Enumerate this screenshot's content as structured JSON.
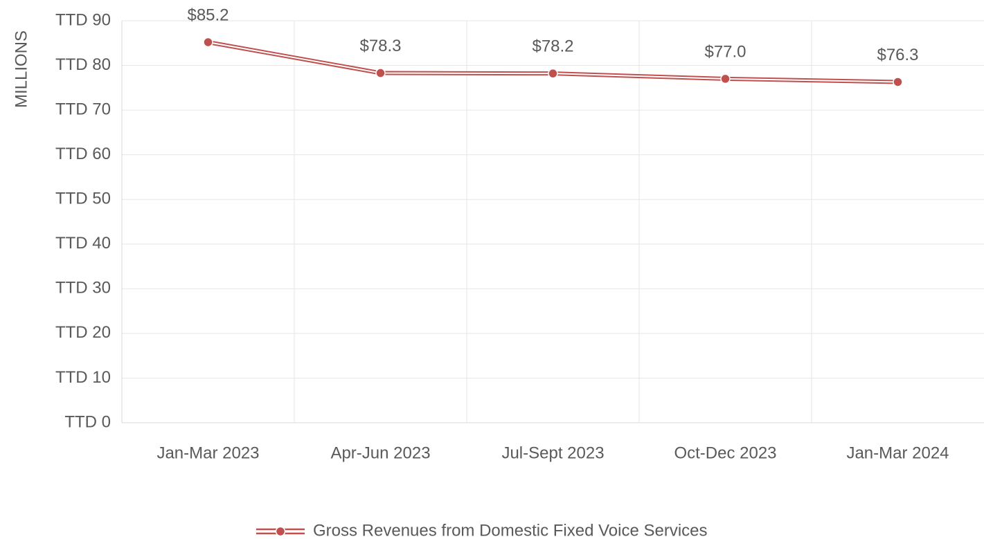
{
  "chart_data": {
    "type": "line",
    "y_axis_label": "MILLIONS",
    "categories": [
      "Jan-Mar 2023",
      "Apr-Jun 2023",
      "Jul-Sept 2023",
      "Oct-Dec 2023",
      "Jan-Mar 2024"
    ],
    "series": [
      {
        "name": "Gross Revenues from Domestic Fixed Voice Services",
        "color": "#c0504d",
        "values": [
          85.2,
          78.3,
          78.2,
          77.0,
          76.3
        ],
        "value_labels": [
          "$85.2",
          "$78.3",
          "$78.2",
          "$77.0",
          "$76.3"
        ]
      }
    ],
    "ylim": [
      0,
      90
    ],
    "yticks": [
      {
        "value": 0,
        "label": "TTD 0"
      },
      {
        "value": 10,
        "label": "TTD 10"
      },
      {
        "value": 20,
        "label": "TTD 20"
      },
      {
        "value": 30,
        "label": "TTD 30"
      },
      {
        "value": 40,
        "label": "TTD 40"
      },
      {
        "value": 50,
        "label": "TTD 50"
      },
      {
        "value": 60,
        "label": "TTD 60"
      },
      {
        "value": 70,
        "label": "TTD 70"
      },
      {
        "value": 80,
        "label": "TTD 80"
      },
      {
        "value": 90,
        "label": "TTD 90"
      }
    ],
    "grid": true,
    "legend": "bottom"
  }
}
